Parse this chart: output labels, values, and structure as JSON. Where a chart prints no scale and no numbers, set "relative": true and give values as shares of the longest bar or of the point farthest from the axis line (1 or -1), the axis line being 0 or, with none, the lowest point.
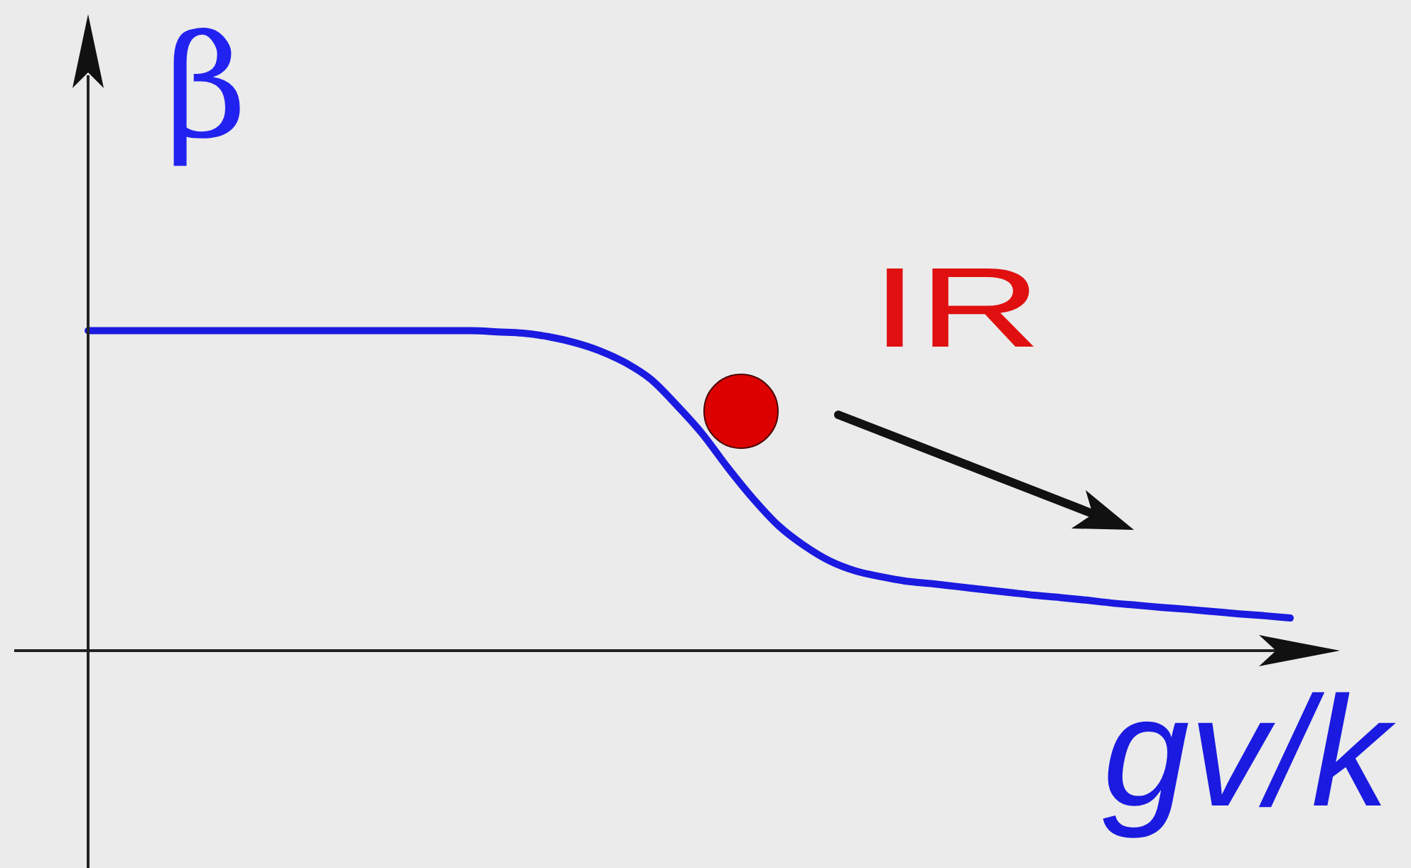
{
  "chart_data": {
    "type": "line",
    "xlabel": "gv/k",
    "ylabel": "β",
    "annotations": [
      "IR"
    ],
    "relative": true,
    "tick_labels": false,
    "categories": [
      null,
      null,
      null,
      null,
      null,
      null,
      null,
      null,
      null,
      null,
      null,
      null,
      null,
      null,
      null,
      null,
      null,
      null,
      null,
      null,
      null,
      null,
      null,
      null,
      null,
      null,
      null,
      null,
      null,
      null,
      null,
      null,
      null,
      null,
      null,
      null,
      null,
      null,
      null,
      null,
      null,
      null,
      null,
      null,
      null,
      null,
      null,
      null
    ],
    "series": [
      {
        "type": "line",
        "color": "#1a1ae0",
        "values": [
          1,
          1,
          1,
          1,
          1,
          1,
          1,
          1,
          1,
          1,
          1,
          1,
          1,
          1,
          1,
          1,
          0.996,
          0.992,
          0.981,
          0.963,
          0.937,
          0.9,
          0.848,
          0.768,
          0.679,
          0.573,
          0.475,
          0.39,
          0.328,
          0.28,
          0.249,
          0.231,
          0.217,
          0.209,
          0.2,
          0.191,
          0.182,
          0.173,
          0.166,
          0.158,
          0.149,
          0.142,
          0.135,
          0.129,
          0.122,
          0.115,
          0.109,
          0.102
        ]
      }
    ]
  }
}
